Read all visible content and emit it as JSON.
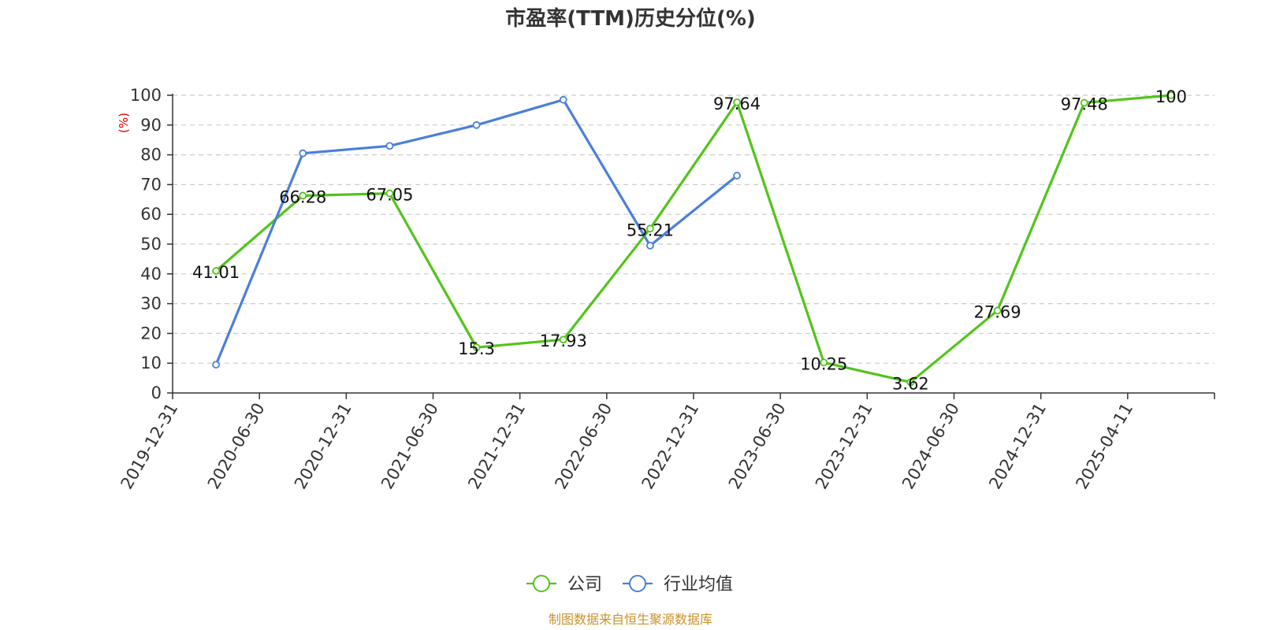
{
  "chart_data": {
    "type": "line",
    "title": "市盈率(TTM)历史分位(%)",
    "ylabel": "(%)",
    "xlabel": "",
    "ylim": [
      0,
      100
    ],
    "yticks": [
      0,
      10,
      20,
      30,
      40,
      50,
      60,
      70,
      80,
      90,
      100
    ],
    "categories": [
      "2019-12-31",
      "2020-06-30",
      "2020-12-31",
      "2021-06-30",
      "2021-12-31",
      "2022-06-30",
      "2022-12-31",
      "2023-06-30",
      "2023-12-31",
      "2024-06-30",
      "2024-12-31",
      "2025-04-11"
    ],
    "grid": true,
    "legend_position": "bottom",
    "series": [
      {
        "name": "公司",
        "color": "#52c41a",
        "show_labels": true,
        "values": [
          41.01,
          66.28,
          67.05,
          15.3,
          17.93,
          55.21,
          97.64,
          10.25,
          3.62,
          27.69,
          97.48,
          100
        ]
      },
      {
        "name": "行业均值",
        "color": "#4a7fdb",
        "show_labels": false,
        "values": [
          9.5,
          80.5,
          83,
          90,
          98.5,
          49.5,
          73,
          null,
          null,
          null,
          null,
          null
        ]
      }
    ]
  },
  "source_text": "制图数据来自恒生聚源数据库"
}
